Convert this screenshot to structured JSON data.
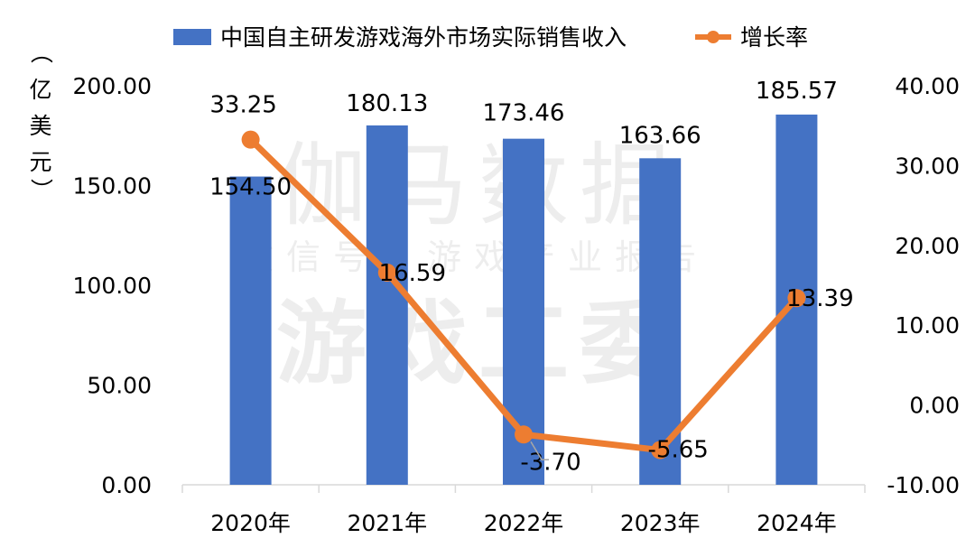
{
  "watermark": {
    "line1": "伽马数据",
    "line2": "微信号：游戏产业报告",
    "line3": "游戏工委"
  },
  "chart_data": {
    "type": "bar",
    "categories": [
      "2020年",
      "2021年",
      "2022年",
      "2023年",
      "2024年"
    ],
    "series": [
      {
        "name": "中国自主研发游戏海外市场实际销售收入",
        "type": "bar",
        "axis": "left",
        "values": [
          154.5,
          180.13,
          173.46,
          163.66,
          185.57
        ],
        "labels": [
          "154.50",
          "180.13",
          "173.46",
          "163.66",
          "185.57"
        ],
        "color": "#4472C4"
      },
      {
        "name": "增长率",
        "type": "line",
        "axis": "right",
        "values": [
          33.25,
          16.59,
          -3.7,
          -5.65,
          13.39
        ],
        "labels": [
          "33.25",
          "16.59",
          "-3.70",
          "-5.65",
          "13.39"
        ],
        "color": "#ED7D31"
      }
    ],
    "y_left": {
      "label_chars": [
        "（",
        "亿",
        "美",
        "元",
        "）"
      ],
      "ylim": [
        0,
        200
      ],
      "ticks": [
        "0.00",
        "50.00",
        "100.00",
        "150.00",
        "200.00"
      ]
    },
    "y_right": {
      "ylim": [
        -10,
        40
      ],
      "ticks": [
        "-10.00",
        "0.00",
        "10.00",
        "20.00",
        "30.00",
        "40.00"
      ]
    },
    "legend_position": "top",
    "grid": false
  }
}
